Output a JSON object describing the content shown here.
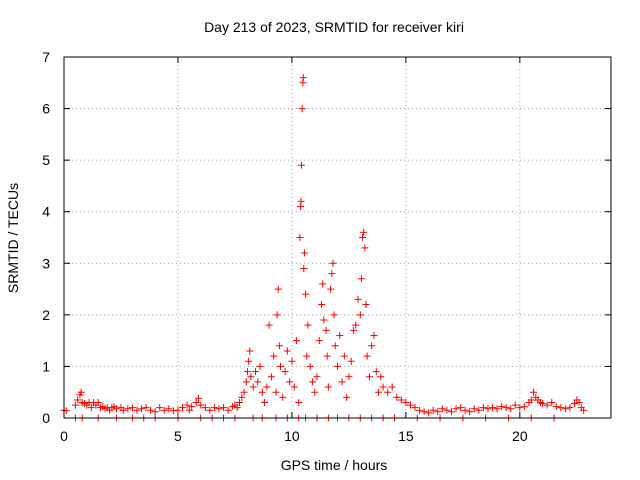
{
  "chart_data": {
    "type": "scatter",
    "title": "Day 213 of 2023, SRMTID for receiver kiri",
    "xlabel": "GPS time / hours",
    "ylabel": "SRMTID / TECUs",
    "xlim": [
      0,
      24
    ],
    "ylim": [
      0,
      7
    ],
    "xticks": [
      0,
      5,
      10,
      15,
      20
    ],
    "yticks": [
      0,
      1,
      2,
      3,
      4,
      5,
      6,
      7
    ],
    "grid": true,
    "marker": "+",
    "color": "#ff0000",
    "series": [
      {
        "name": "SRMTID",
        "points": [
          [
            0.0,
            0.15
          ],
          [
            0.1,
            0.14
          ],
          [
            0.5,
            0.25
          ],
          [
            0.6,
            0.35
          ],
          [
            0.7,
            0.45
          ],
          [
            0.75,
            0.5
          ],
          [
            0.8,
            0.3
          ],
          [
            0.9,
            0.28
          ],
          [
            1.0,
            0.25
          ],
          [
            1.1,
            0.3
          ],
          [
            1.2,
            0.2
          ],
          [
            1.3,
            0.3
          ],
          [
            1.4,
            0.25
          ],
          [
            1.5,
            0.3
          ],
          [
            1.6,
            0.2
          ],
          [
            1.7,
            0.22
          ],
          [
            1.8,
            0.18
          ],
          [
            1.9,
            0.2
          ],
          [
            2.0,
            0.15
          ],
          [
            2.1,
            0.2
          ],
          [
            2.2,
            0.22
          ],
          [
            2.3,
            0.18
          ],
          [
            2.5,
            0.2
          ],
          [
            2.6,
            0.15
          ],
          [
            2.8,
            0.18
          ],
          [
            3.0,
            0.2
          ],
          [
            3.2,
            0.15
          ],
          [
            3.4,
            0.18
          ],
          [
            3.6,
            0.2
          ],
          [
            3.8,
            0.15
          ],
          [
            4.0,
            0.12
          ],
          [
            4.2,
            0.2
          ],
          [
            4.4,
            0.15
          ],
          [
            4.6,
            0.18
          ],
          [
            4.8,
            0.14
          ],
          [
            5.0,
            0.15
          ],
          [
            5.2,
            0.2
          ],
          [
            5.4,
            0.25
          ],
          [
            5.5,
            0.15
          ],
          [
            5.6,
            0.22
          ],
          [
            5.8,
            0.3
          ],
          [
            5.9,
            0.38
          ],
          [
            6.0,
            0.25
          ],
          [
            6.2,
            0.2
          ],
          [
            6.4,
            0.15
          ],
          [
            6.6,
            0.2
          ],
          [
            6.8,
            0.18
          ],
          [
            7.0,
            0.2
          ],
          [
            7.2,
            0.15
          ],
          [
            7.4,
            0.22
          ],
          [
            7.5,
            0.25
          ],
          [
            7.6,
            0.2
          ],
          [
            7.7,
            0.3
          ],
          [
            7.8,
            0.4
          ],
          [
            7.9,
            0.5
          ],
          [
            8.0,
            0.7
          ],
          [
            8.05,
            0.9
          ],
          [
            8.1,
            1.1
          ],
          [
            8.15,
            1.3
          ],
          [
            8.2,
            0.8
          ],
          [
            8.3,
            0.6
          ],
          [
            8.4,
            0.9
          ],
          [
            8.5,
            0.7
          ],
          [
            8.6,
            1.0
          ],
          [
            8.7,
            0.5
          ],
          [
            8.8,
            0.3
          ],
          [
            8.9,
            0.6
          ],
          [
            9.0,
            1.8
          ],
          [
            9.1,
            0.8
          ],
          [
            9.2,
            1.2
          ],
          [
            9.3,
            0.5
          ],
          [
            9.35,
            2.0
          ],
          [
            9.4,
            2.5
          ],
          [
            9.45,
            1.4
          ],
          [
            9.5,
            1.0
          ],
          [
            9.6,
            0.4
          ],
          [
            9.7,
            0.9
          ],
          [
            9.8,
            1.3
          ],
          [
            9.9,
            0.7
          ],
          [
            10.0,
            1.1
          ],
          [
            10.1,
            0.6
          ],
          [
            10.2,
            1.5
          ],
          [
            10.3,
            0.3
          ],
          [
            10.35,
            3.5
          ],
          [
            10.38,
            4.1
          ],
          [
            10.4,
            4.2
          ],
          [
            10.42,
            4.9
          ],
          [
            10.45,
            6.0
          ],
          [
            10.48,
            6.5
          ],
          [
            10.5,
            6.6
          ],
          [
            10.52,
            2.9
          ],
          [
            10.55,
            3.2
          ],
          [
            10.6,
            2.4
          ],
          [
            10.65,
            1.2
          ],
          [
            10.7,
            1.8
          ],
          [
            10.8,
            1.0
          ],
          [
            10.9,
            0.7
          ],
          [
            11.0,
            0.5
          ],
          [
            11.1,
            0.8
          ],
          [
            11.2,
            1.5
          ],
          [
            11.3,
            2.2
          ],
          [
            11.35,
            2.6
          ],
          [
            11.4,
            1.9
          ],
          [
            11.5,
            1.7
          ],
          [
            11.55,
            1.2
          ],
          [
            11.6,
            0.6
          ],
          [
            11.7,
            2.5
          ],
          [
            11.75,
            2.8
          ],
          [
            11.8,
            3.0
          ],
          [
            11.85,
            2.0
          ],
          [
            11.9,
            1.4
          ],
          [
            12.0,
            1.0
          ],
          [
            12.1,
            1.6
          ],
          [
            12.2,
            0.7
          ],
          [
            12.3,
            1.2
          ],
          [
            12.4,
            0.4
          ],
          [
            12.5,
            0.8
          ],
          [
            12.6,
            1.1
          ],
          [
            12.7,
            1.7
          ],
          [
            12.8,
            1.8
          ],
          [
            12.9,
            2.3
          ],
          [
            13.0,
            2.0
          ],
          [
            13.05,
            2.7
          ],
          [
            13.1,
            3.5
          ],
          [
            13.15,
            3.6
          ],
          [
            13.2,
            3.3
          ],
          [
            13.25,
            2.2
          ],
          [
            13.3,
            1.2
          ],
          [
            13.4,
            0.8
          ],
          [
            13.5,
            1.4
          ],
          [
            13.6,
            1.6
          ],
          [
            13.7,
            0.9
          ],
          [
            13.8,
            0.5
          ],
          [
            13.9,
            0.8
          ],
          [
            14.0,
            0.6
          ],
          [
            14.2,
            0.5
          ],
          [
            14.4,
            0.6
          ],
          [
            14.6,
            0.4
          ],
          [
            14.8,
            0.35
          ],
          [
            15.0,
            0.3
          ],
          [
            15.2,
            0.25
          ],
          [
            15.4,
            0.2
          ],
          [
            15.6,
            0.15
          ],
          [
            15.8,
            0.12
          ],
          [
            16.0,
            0.1
          ],
          [
            16.2,
            0.15
          ],
          [
            16.4,
            0.12
          ],
          [
            16.6,
            0.18
          ],
          [
            16.8,
            0.15
          ],
          [
            17.0,
            0.12
          ],
          [
            17.2,
            0.18
          ],
          [
            17.4,
            0.2
          ],
          [
            17.6,
            0.15
          ],
          [
            17.8,
            0.12
          ],
          [
            18.0,
            0.18
          ],
          [
            18.2,
            0.15
          ],
          [
            18.4,
            0.2
          ],
          [
            18.6,
            0.18
          ],
          [
            18.8,
            0.2
          ],
          [
            19.0,
            0.18
          ],
          [
            19.2,
            0.22
          ],
          [
            19.4,
            0.2
          ],
          [
            19.6,
            0.18
          ],
          [
            19.8,
            0.25
          ],
          [
            20.0,
            0.2
          ],
          [
            20.2,
            0.22
          ],
          [
            20.4,
            0.3
          ],
          [
            20.5,
            0.35
          ],
          [
            20.6,
            0.5
          ],
          [
            20.7,
            0.4
          ],
          [
            20.8,
            0.35
          ],
          [
            20.9,
            0.3
          ],
          [
            21.0,
            0.28
          ],
          [
            21.2,
            0.25
          ],
          [
            21.4,
            0.3
          ],
          [
            21.6,
            0.22
          ],
          [
            21.8,
            0.2
          ],
          [
            22.0,
            0.18
          ],
          [
            22.2,
            0.2
          ],
          [
            22.4,
            0.28
          ],
          [
            22.5,
            0.35
          ],
          [
            22.6,
            0.3
          ],
          [
            22.7,
            0.2
          ],
          [
            22.8,
            0.15
          ]
        ]
      }
    ],
    "zeros_x": [
      0.5,
      0.8,
      1.5,
      2.3,
      3.0,
      3.5,
      4.0,
      5.0,
      6.0,
      6.5,
      7.0,
      7.5,
      8.3,
      8.7,
      9.3,
      9.8,
      10.3,
      10.6,
      11.1,
      11.6,
      12.0,
      12.5,
      13.0,
      13.5,
      14.0,
      14.5,
      15.5,
      16.5,
      17.5,
      18.5,
      19.5,
      20.5,
      21.5
    ]
  }
}
